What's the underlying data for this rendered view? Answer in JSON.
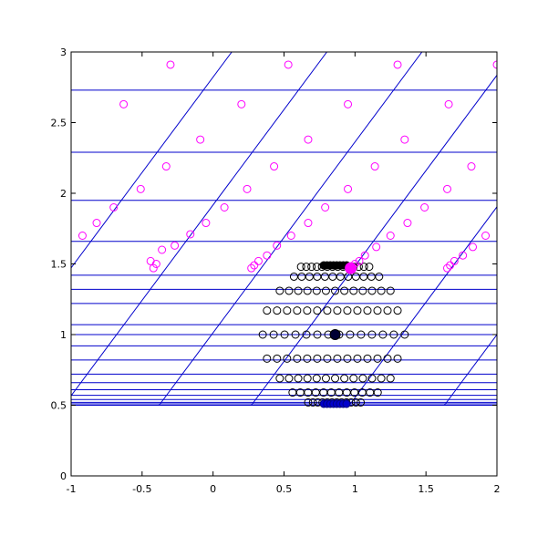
{
  "chart_data": {
    "type": "scatter",
    "title": "",
    "xlabel": "",
    "ylabel": "",
    "xlim": [
      -1,
      2
    ],
    "ylim": [
      0,
      3
    ],
    "x_ticks": [
      "-1",
      "-0.5",
      "0",
      "0.5",
      "1",
      "1.5",
      "2"
    ],
    "y_ticks": [
      "0",
      "0.5",
      "1",
      "1.5",
      "2",
      "2.5",
      "3"
    ],
    "x_tick_values": [
      -1,
      -0.5,
      0,
      0.5,
      1,
      1.5,
      2
    ],
    "y_tick_values": [
      0,
      0.5,
      1,
      1.5,
      2,
      2.5,
      3
    ],
    "grid": false,
    "line_color": "#0000cc",
    "black_color": "#000000",
    "magenta_color": "#ff00ff",
    "horizontal_lines_y": [
      0.5,
      0.51,
      0.52,
      0.54,
      0.57,
      0.61,
      0.66,
      0.72,
      0.82,
      0.92,
      1.0,
      1.07,
      1.22,
      1.32,
      1.42,
      1.66,
      1.95,
      2.29,
      2.73
    ],
    "diagonal_lines": [
      {
        "x0": -0.38,
        "slope": 1.35
      },
      {
        "x0": 0.27,
        "slope": 1.35
      },
      {
        "x0": 0.96,
        "slope": 1.35
      },
      {
        "x0": 1.63,
        "slope": 1.35
      },
      {
        "x0": 2.3,
        "slope": 1.35
      },
      {
        "x0": -1.05,
        "slope": 1.35
      },
      {
        "x0": -1.72,
        "slope": 1.35
      }
    ],
    "black_rows": [
      {
        "y": 1.48,
        "x_from": 0.62,
        "x_to": 1.1,
        "n": 14
      },
      {
        "y": 1.41,
        "x_from": 0.57,
        "x_to": 1.17,
        "n": 12
      },
      {
        "y": 1.31,
        "x_from": 0.47,
        "x_to": 1.25,
        "n": 13
      },
      {
        "y": 1.17,
        "x_from": 0.38,
        "x_to": 1.3,
        "n": 14
      },
      {
        "y": 1.0,
        "x_from": 0.35,
        "x_to": 1.35,
        "n": 14
      },
      {
        "y": 0.83,
        "x_from": 0.38,
        "x_to": 1.3,
        "n": 14
      },
      {
        "y": 0.69,
        "x_from": 0.47,
        "x_to": 1.25,
        "n": 13
      },
      {
        "y": 0.59,
        "x_from": 0.56,
        "x_to": 1.16,
        "n": 12
      },
      {
        "y": 0.52,
        "x_from": 0.67,
        "x_to": 1.04,
        "n": 12
      }
    ],
    "black_filled": [
      {
        "x": 0.86,
        "y": 1.0
      }
    ],
    "blue_filled_cluster": {
      "y": 0.51,
      "x_from": 0.78,
      "x_to": 0.94,
      "n": 8
    },
    "black_top_cluster": {
      "y": 1.49,
      "x_from": 0.78,
      "x_to": 0.94,
      "n": 8
    },
    "magenta_points": [
      {
        "x": -0.92,
        "y": 1.7
      },
      {
        "x": -0.82,
        "y": 1.79
      },
      {
        "x": -0.7,
        "y": 1.9
      },
      {
        "x": -0.63,
        "y": 2.63
      },
      {
        "x": -0.51,
        "y": 2.03
      },
      {
        "x": -0.36,
        "y": 1.6
      },
      {
        "x": -0.33,
        "y": 2.19
      },
      {
        "x": -0.4,
        "y": 1.5
      },
      {
        "x": -0.42,
        "y": 1.47
      },
      {
        "x": -0.44,
        "y": 1.52
      },
      {
        "x": -0.3,
        "y": 2.91
      },
      {
        "x": -0.27,
        "y": 1.63
      },
      {
        "x": -0.16,
        "y": 1.71
      },
      {
        "x": -0.09,
        "y": 2.38
      },
      {
        "x": -0.05,
        "y": 1.79
      },
      {
        "x": 0.08,
        "y": 1.9
      },
      {
        "x": 0.2,
        "y": 2.63
      },
      {
        "x": 0.24,
        "y": 2.03
      },
      {
        "x": 0.27,
        "y": 1.47
      },
      {
        "x": 0.29,
        "y": 1.49
      },
      {
        "x": 0.32,
        "y": 1.52
      },
      {
        "x": 0.38,
        "y": 1.56
      },
      {
        "x": 0.43,
        "y": 2.19
      },
      {
        "x": 0.45,
        "y": 1.63
      },
      {
        "x": 0.53,
        "y": 2.91
      },
      {
        "x": 0.55,
        "y": 1.7
      },
      {
        "x": 0.67,
        "y": 2.38
      },
      {
        "x": 0.67,
        "y": 1.79
      },
      {
        "x": 0.79,
        "y": 1.9
      },
      {
        "x": 0.95,
        "y": 2.63
      },
      {
        "x": 0.95,
        "y": 2.03
      },
      {
        "x": 1.0,
        "y": 1.5
      },
      {
        "x": 1.03,
        "y": 1.52
      },
      {
        "x": 1.07,
        "y": 1.56
      },
      {
        "x": 1.14,
        "y": 2.19
      },
      {
        "x": 1.15,
        "y": 1.62
      },
      {
        "x": 1.25,
        "y": 1.7
      },
      {
        "x": 1.3,
        "y": 2.91
      },
      {
        "x": 1.35,
        "y": 2.38
      },
      {
        "x": 1.37,
        "y": 1.79
      },
      {
        "x": 1.49,
        "y": 1.9
      },
      {
        "x": 1.65,
        "y": 2.03
      },
      {
        "x": 1.66,
        "y": 2.63
      },
      {
        "x": 1.65,
        "y": 1.47
      },
      {
        "x": 1.67,
        "y": 1.49
      },
      {
        "x": 1.7,
        "y": 1.52
      },
      {
        "x": 1.76,
        "y": 1.56
      },
      {
        "x": 1.82,
        "y": 2.19
      },
      {
        "x": 1.83,
        "y": 1.62
      },
      {
        "x": 1.92,
        "y": 1.7
      },
      {
        "x": 2.0,
        "y": 2.91
      }
    ],
    "magenta_filled": [
      {
        "x": 0.97,
        "y": 1.47
      }
    ]
  }
}
